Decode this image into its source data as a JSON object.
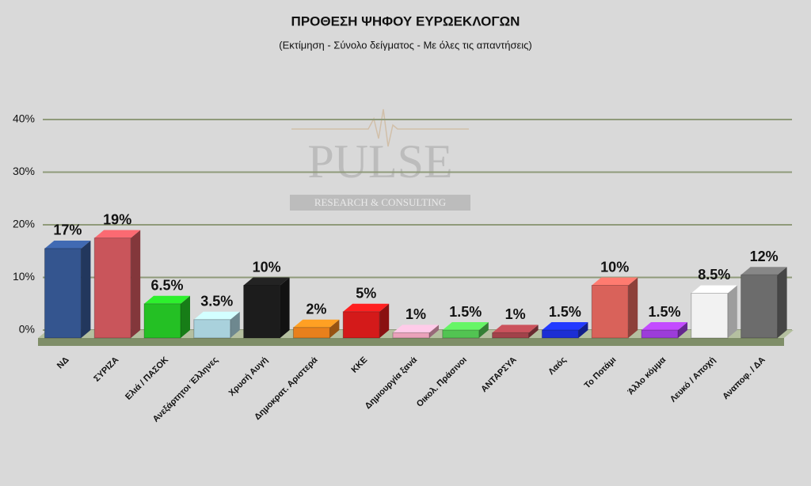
{
  "chart_data": {
    "type": "bar",
    "title": "ΠΡΟΘΕΣΗ ΨΗΦΟΥ ΕΥΡΩΕΚΛΟΓΩΝ",
    "subtitle": "(Εκτίμηση - Σύνολο δείγματος - Με όλες τις απαντήσεις)",
    "watermark": {
      "name": "PULSE",
      "tagline": "RESEARCH & CONSULTING"
    },
    "categories": [
      "ΝΔ",
      "ΣΥΡΙΖΑ",
      "Ελιά / ΠΑΣΟΚ",
      "Ανεξάρτητοι Έλληνες",
      "Χρυσή Αυγή",
      "Δημοκρατ. Αριστερά",
      "ΚΚΕ",
      "Δημιουργία ξανά",
      "Οικολ. Πράσινοι",
      "ΑΝΤΑΡΣΥΑ",
      "Λαός",
      "Το Ποτάμι",
      "Άλλο κόμμα",
      "Λευκό / Αποχή",
      "Αναποφ. / ΔΑ"
    ],
    "values": [
      17,
      19,
      6.5,
      3.5,
      10,
      2,
      5,
      1,
      1.5,
      1,
      1.5,
      10,
      1.5,
      8.5,
      12
    ],
    "value_labels": [
      "17%",
      "19%",
      "6.5%",
      "3.5%",
      "10%",
      "2%",
      "5%",
      "1%",
      "1.5%",
      "1%",
      "1.5%",
      "10%",
      "1.5%",
      "8.5%",
      "12%"
    ],
    "colors": [
      "#34558f",
      "#c9555b",
      "#24c024",
      "#a9d1dc",
      "#1c1c1c",
      "#e8801c",
      "#d41a1a",
      "#eaa2ba",
      "#52c452",
      "#a2424a",
      "#1c2ed4",
      "#d9625a",
      "#9c3cda",
      "#f2f2f2",
      "#6c6c6c"
    ],
    "ylim": [
      0,
      40
    ],
    "yticks": [
      {
        "value": 0,
        "label": "0%"
      },
      {
        "value": 10,
        "label": "10%"
      },
      {
        "value": 20,
        "label": "20%"
      },
      {
        "value": 30,
        "label": "30%"
      },
      {
        "value": 40,
        "label": "40%"
      }
    ],
    "grid": true
  }
}
